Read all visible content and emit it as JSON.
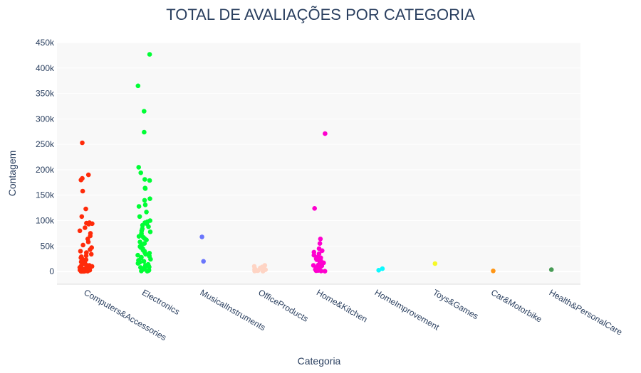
{
  "chart_data": {
    "type": "scatter",
    "title": "TOTAL DE AVALIAÇÕES POR CATEGORIA",
    "xlabel": "Categoria",
    "ylabel": "Contagem",
    "ylim": [
      -25000,
      450000
    ],
    "yticks": [
      0,
      50000,
      100000,
      150000,
      200000,
      250000,
      300000,
      350000,
      400000,
      450000
    ],
    "ytick_labels": [
      "0",
      "50k",
      "100k",
      "150k",
      "200k",
      "250k",
      "300k",
      "350k",
      "400k",
      "450k"
    ],
    "grid": true,
    "legend": "none",
    "series": [
      {
        "category": "Computers&Accessories",
        "color": "#ff2b0a",
        "values": [
          253000,
          190000,
          183000,
          180000,
          158000,
          123000,
          108000,
          96000,
          95000,
          94000,
          93000,
          86000,
          80000,
          75000,
          70000,
          64000,
          58000,
          52000,
          47000,
          43000,
          40000,
          37000,
          34000,
          31000,
          29000,
          27000,
          25000,
          23000,
          21000,
          19000,
          17000,
          15000,
          13000,
          12000,
          11000,
          10000,
          9000,
          8000,
          7000,
          6000,
          5000,
          4500,
          4000,
          3500,
          3000,
          2500,
          2000,
          1500,
          1000,
          800,
          600,
          400,
          300,
          200,
          100
        ]
      },
      {
        "category": "Electronics",
        "color": "#00fe35",
        "values": [
          427000,
          365000,
          315000,
          274000,
          205000,
          194000,
          181000,
          179000,
          164000,
          163000,
          143000,
          140000,
          131000,
          128000,
          117000,
          108000,
          100000,
          98000,
          96000,
          94000,
          91000,
          88000,
          84000,
          80000,
          78000,
          75000,
          72000,
          69000,
          67000,
          65000,
          62000,
          58000,
          55000,
          52000,
          49000,
          47000,
          45000,
          42000,
          40000,
          38000,
          36000,
          34000,
          32000,
          30000,
          28000,
          26000,
          24000,
          22000,
          20000,
          18000,
          16000,
          14000,
          12000,
          10000,
          9000,
          8000,
          7000,
          6000,
          5000,
          4000,
          3000,
          2000,
          1000,
          500
        ]
      },
      {
        "category": "MusicalInstruments",
        "color": "#6a76fc",
        "values": [
          68000,
          20000
        ]
      },
      {
        "category": "OfficeProducts",
        "color": "#fed4c4",
        "values": [
          12000,
          10000,
          9000,
          8000,
          7000,
          6000,
          5000,
          4500,
          4000,
          3500,
          3000,
          2500,
          2000,
          1500,
          1000,
          500
        ]
      },
      {
        "category": "Home&Kitchen",
        "color": "#fe00ce",
        "values": [
          271000,
          124000,
          64000,
          55000,
          45000,
          41000,
          38000,
          35000,
          32000,
          29000,
          27000,
          25000,
          23000,
          21000,
          19000,
          17000,
          15000,
          14000,
          13000,
          12000,
          11000,
          10000,
          9000,
          8000,
          7000,
          6000,
          5000,
          4000,
          3000,
          2000,
          1500,
          1000,
          500
        ]
      },
      {
        "category": "HomeImprovement",
        "color": "#0df9ff",
        "values": [
          5500,
          2500
        ]
      },
      {
        "category": "Toys&Games",
        "color": "#f6f926",
        "values": [
          15500
        ]
      },
      {
        "category": "Car&Motorbike",
        "color": "#ff9616",
        "values": [
          1100
        ]
      },
      {
        "category": "Health&PersonalCare",
        "color": "#479b55",
        "values": [
          3700
        ]
      }
    ]
  }
}
